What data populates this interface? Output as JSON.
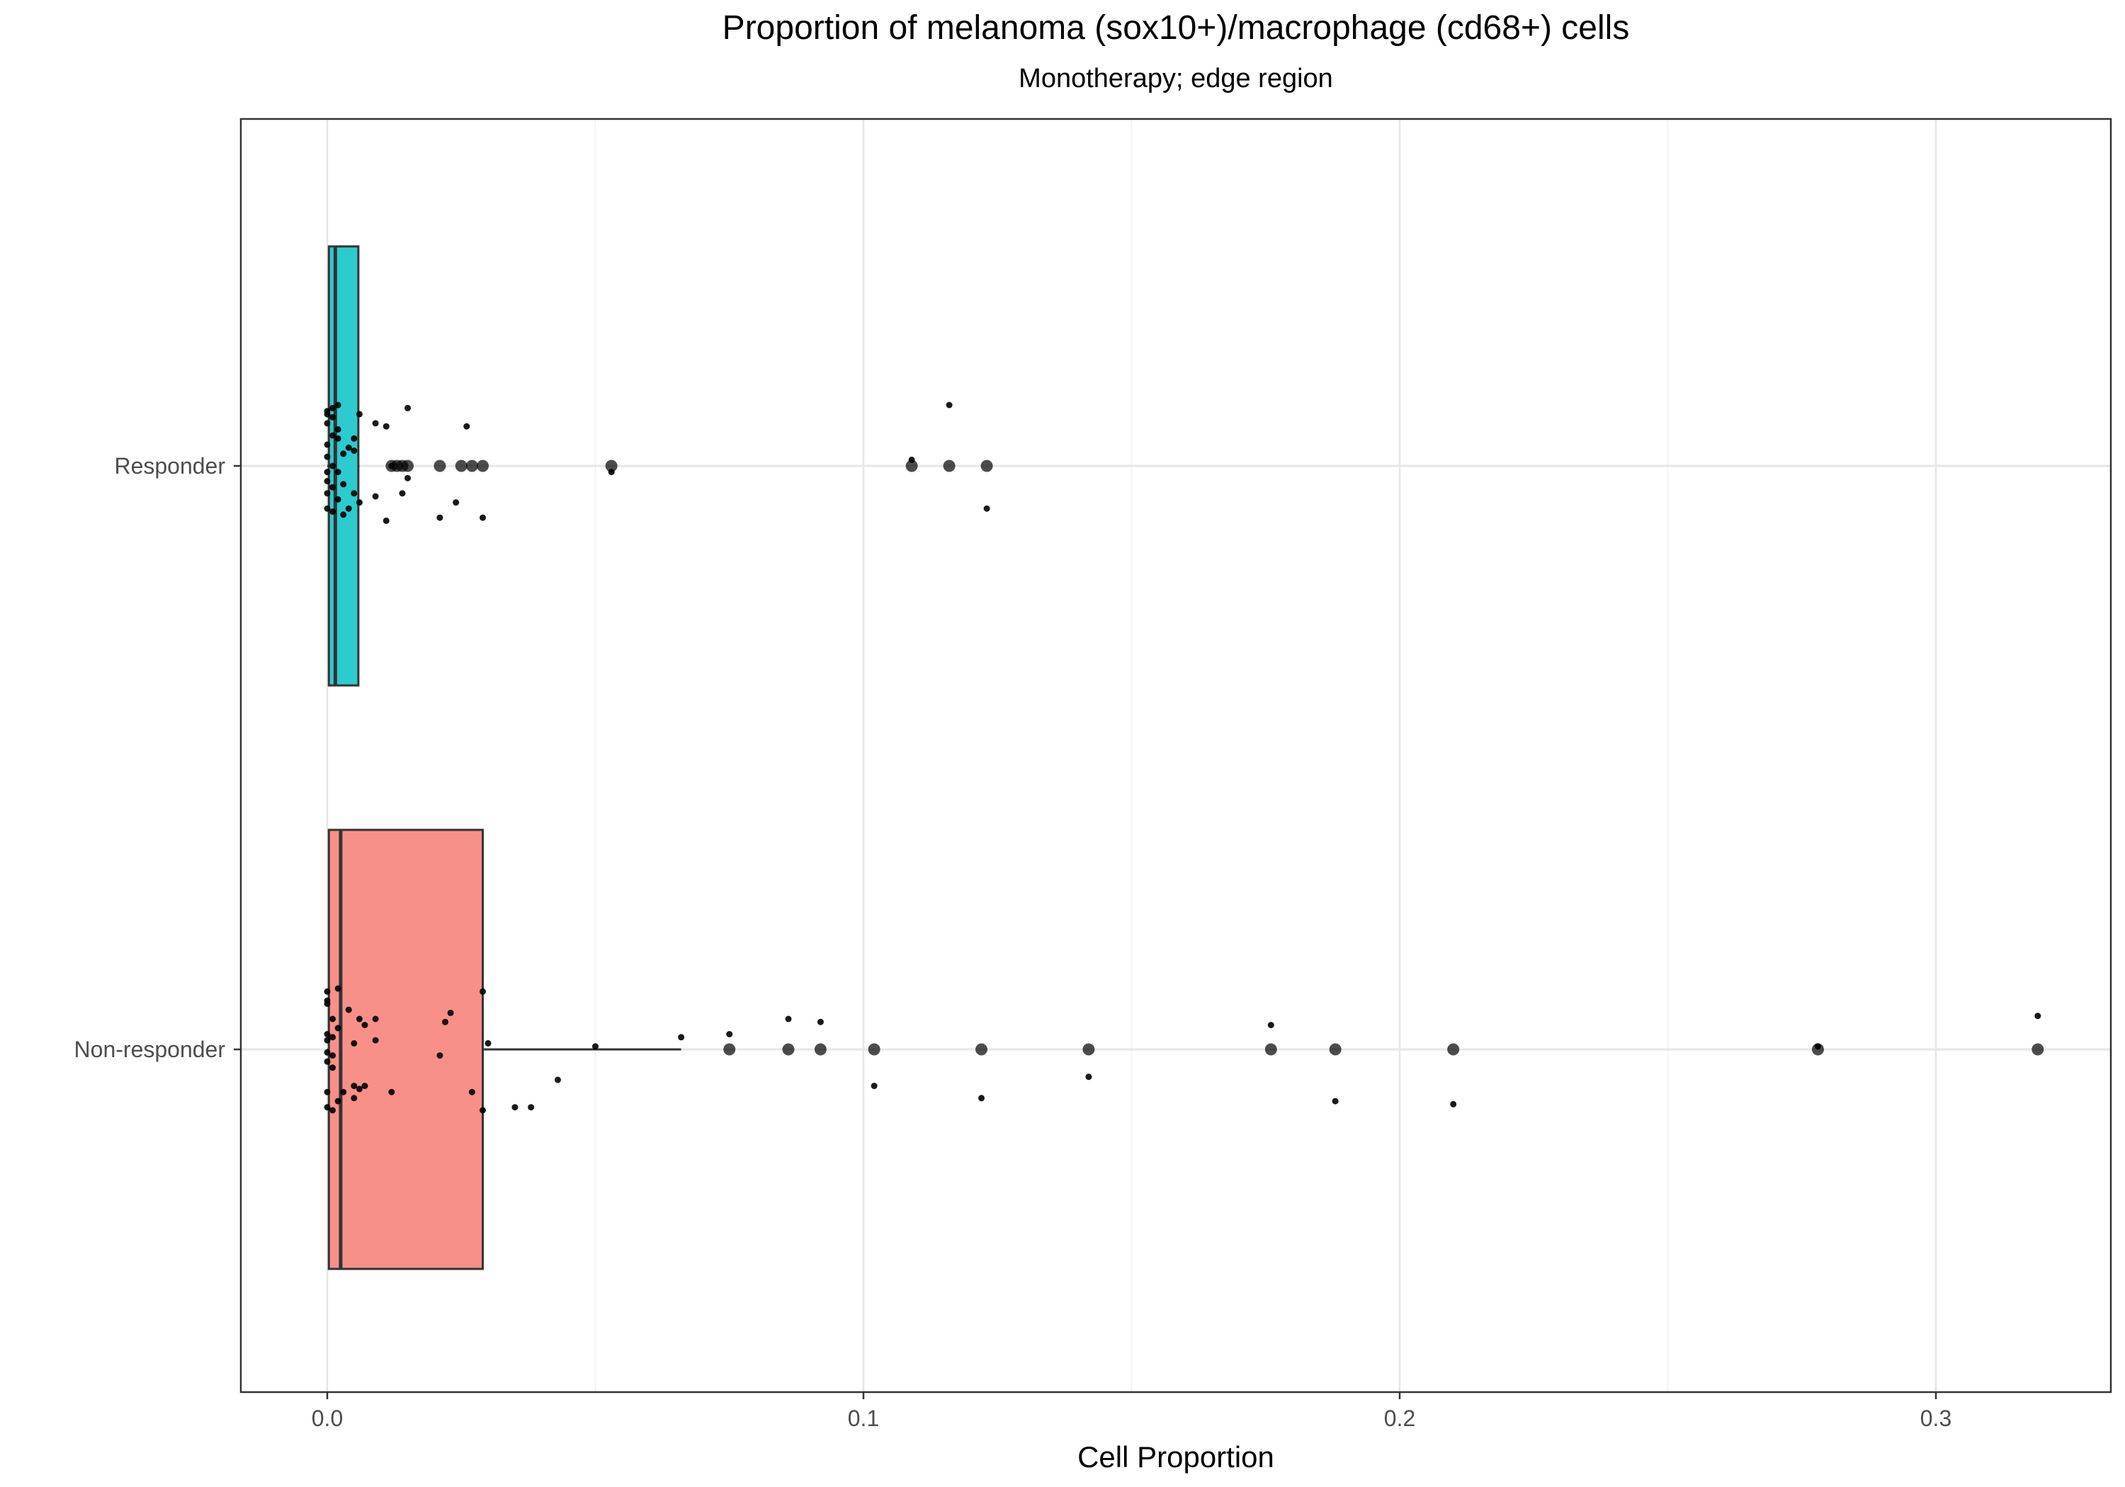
{
  "chart_data": {
    "type": "boxplot",
    "title": "Proportion of melanoma (sox10+)/macrophage (cd68+) cells",
    "subtitle": "Monotherapy; edge region",
    "xlabel": "Cell Proportion",
    "ylabel": "",
    "xlim": [
      -0.016,
      0.334
    ],
    "x_ticks": [
      0.0,
      0.1,
      0.2,
      0.3
    ],
    "x_tick_labels": [
      "0.0",
      "0.1",
      "0.2",
      "0.3"
    ],
    "grid": true,
    "orientation": "horizontal",
    "categories": [
      "Responder",
      "Non-responder"
    ],
    "colors": {
      "Responder": "#2ccbce",
      "Non-responder": "#f8908a"
    },
    "boxes": [
      {
        "name": "Responder",
        "min": 0.0,
        "q1": 0.0003,
        "median": 0.0015,
        "q3": 0.0058,
        "max": 0.006,
        "outliers": [
          0.012,
          0.013,
          0.014,
          0.015,
          0.021,
          0.025,
          0.027,
          0.029,
          0.053,
          0.109,
          0.116,
          0.123
        ],
        "jitter": [
          [
            0.0,
            0.18
          ],
          [
            0.001,
            0.19
          ],
          [
            0.002,
            0.2
          ],
          [
            0.0,
            0.17
          ],
          [
            0.001,
            0.16
          ],
          [
            0.006,
            0.17
          ],
          [
            0.015,
            0.19
          ],
          [
            0.009,
            0.14
          ],
          [
            0.011,
            0.13
          ],
          [
            0.0,
            0.14
          ],
          [
            0.002,
            0.12
          ],
          [
            0.026,
            0.13
          ],
          [
            0.116,
            0.2
          ],
          [
            0.002,
            0.09
          ],
          [
            0.005,
            0.09
          ],
          [
            0.001,
            0.1
          ],
          [
            0.004,
            0.06
          ],
          [
            0.0,
            0.07
          ],
          [
            0.003,
            0.04
          ],
          [
            0.0,
            0.03
          ],
          [
            0.005,
            0.05
          ],
          [
            0.109,
            0.02
          ],
          [
            0.012,
            0.0
          ],
          [
            0.001,
            0.0
          ],
          [
            0.002,
            -0.02
          ],
          [
            0.0,
            -0.02
          ],
          [
            0.015,
            -0.04
          ],
          [
            0.053,
            -0.02
          ],
          [
            0.0,
            -0.05
          ],
          [
            0.003,
            -0.06
          ],
          [
            0.001,
            -0.07
          ],
          [
            0.005,
            -0.09
          ],
          [
            0.009,
            -0.1
          ],
          [
            0.014,
            -0.09
          ],
          [
            0.0,
            -0.09
          ],
          [
            0.002,
            -0.11
          ],
          [
            0.006,
            -0.12
          ],
          [
            0.024,
            -0.12
          ],
          [
            0.0,
            -0.14
          ],
          [
            0.001,
            -0.15
          ],
          [
            0.004,
            -0.14
          ],
          [
            0.003,
            -0.16
          ],
          [
            0.021,
            -0.17
          ],
          [
            0.029,
            -0.17
          ],
          [
            0.011,
            -0.18
          ],
          [
            0.123,
            -0.14
          ]
        ]
      },
      {
        "name": "Non-responder",
        "min": 0.0,
        "q1": 0.0003,
        "median": 0.0025,
        "q3": 0.029,
        "max": 0.066,
        "outliers": [
          0.075,
          0.086,
          0.092,
          0.102,
          0.122,
          0.142,
          0.176,
          0.188,
          0.21,
          0.278,
          0.319
        ],
        "jitter": [
          [
            0.0,
            0.19
          ],
          [
            0.002,
            0.2
          ],
          [
            0.029,
            0.19
          ],
          [
            0.0,
            0.16
          ],
          [
            0.0,
            0.15
          ],
          [
            0.004,
            0.13
          ],
          [
            0.023,
            0.12
          ],
          [
            0.001,
            0.1
          ],
          [
            0.006,
            0.1
          ],
          [
            0.009,
            0.1
          ],
          [
            0.086,
            0.1
          ],
          [
            0.092,
            0.09
          ],
          [
            0.022,
            0.09
          ],
          [
            0.002,
            0.07
          ],
          [
            0.007,
            0.08
          ],
          [
            0.0,
            0.05
          ],
          [
            0.066,
            0.04
          ],
          [
            0.075,
            0.05
          ],
          [
            0.176,
            0.08
          ],
          [
            0.319,
            0.11
          ],
          [
            0.001,
            0.04
          ],
          [
            0.009,
            0.03
          ],
          [
            0.0,
            0.03
          ],
          [
            0.005,
            0.02
          ],
          [
            0.03,
            0.02
          ],
          [
            0.05,
            0.01
          ],
          [
            0.278,
            0.01
          ],
          [
            0.0,
            -0.01
          ],
          [
            0.001,
            -0.02
          ],
          [
            0.021,
            -0.02
          ],
          [
            0.0,
            -0.04
          ],
          [
            0.001,
            -0.06
          ],
          [
            0.142,
            -0.09
          ],
          [
            0.043,
            -0.1
          ],
          [
            0.005,
            -0.12
          ],
          [
            0.007,
            -0.12
          ],
          [
            0.006,
            -0.13
          ],
          [
            0.0,
            -0.14
          ],
          [
            0.003,
            -0.14
          ],
          [
            0.012,
            -0.14
          ],
          [
            0.027,
            -0.14
          ],
          [
            0.102,
            -0.12
          ],
          [
            0.005,
            -0.16
          ],
          [
            0.002,
            -0.17
          ],
          [
            0.122,
            -0.16
          ],
          [
            0.188,
            -0.17
          ],
          [
            0.21,
            -0.18
          ],
          [
            0.0,
            -0.19
          ],
          [
            0.001,
            -0.2
          ],
          [
            0.029,
            -0.2
          ],
          [
            0.035,
            -0.19
          ],
          [
            0.038,
            -0.19
          ]
        ]
      }
    ]
  }
}
